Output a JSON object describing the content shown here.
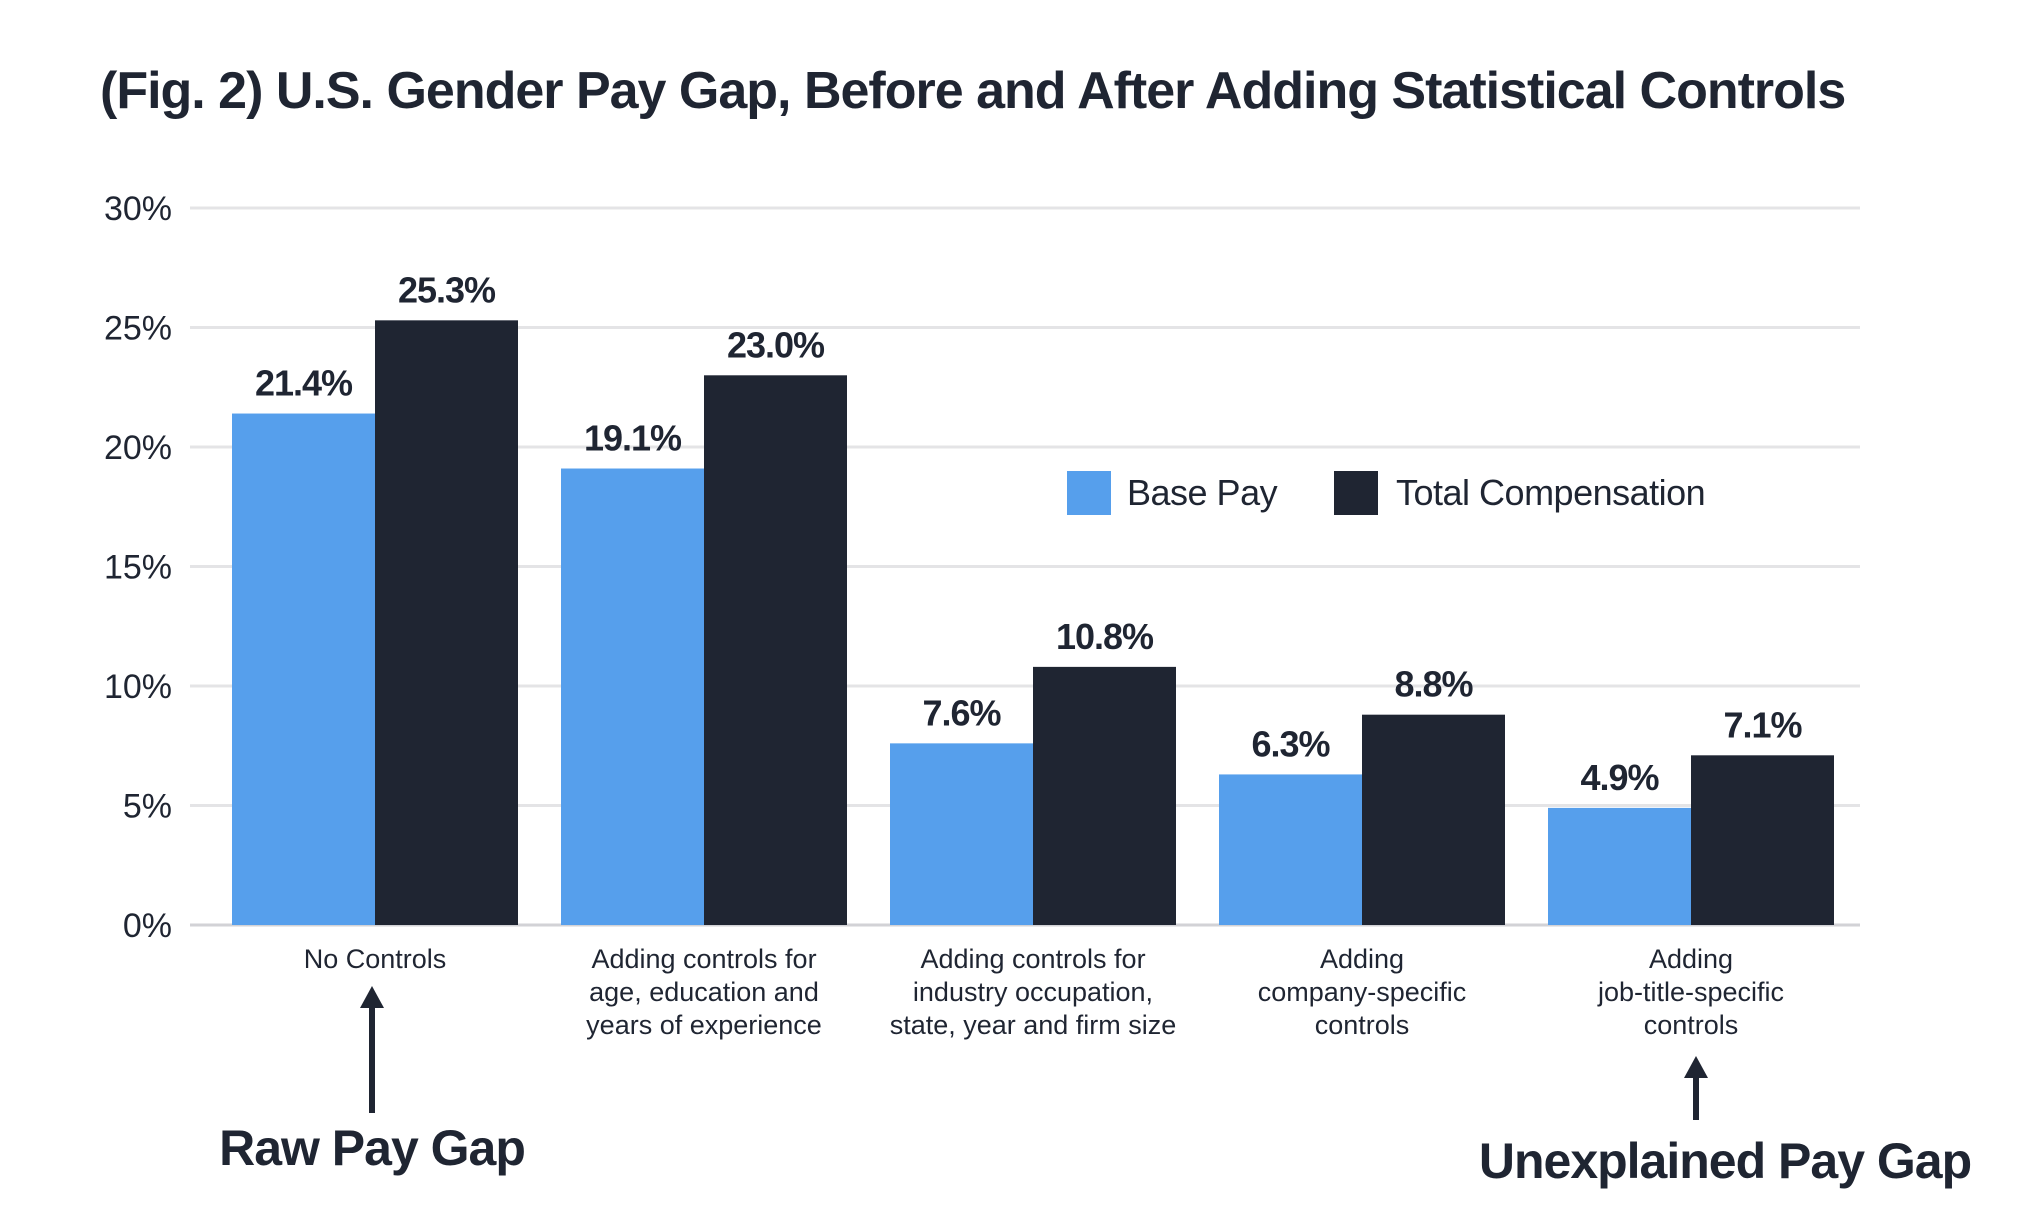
{
  "colors": {
    "base_pay": "#569fec",
    "total_comp": "#1f2532",
    "grid": "#e4e4e6",
    "text": "#1f2532"
  },
  "chart_data": {
    "type": "bar",
    "title": "(Fig. 2) U.S. Gender Pay Gap, Before and After Adding Statistical Controls",
    "xlabel": "",
    "ylabel": "",
    "ylim": [
      0,
      30
    ],
    "yticks": [
      "0%",
      "5%",
      "10%",
      "15%",
      "20%",
      "25%",
      "30%"
    ],
    "ytick_values": [
      0,
      5,
      10,
      15,
      20,
      25,
      30
    ],
    "grid": true,
    "legend_position": "upper-right",
    "categories": [
      [
        "No Controls"
      ],
      [
        "Adding controls for",
        "age, education and",
        "years of experience"
      ],
      [
        "Adding controls for",
        "industry occupation,",
        "state, year and firm size"
      ],
      [
        "Adding",
        "company-specific",
        "controls"
      ],
      [
        "Adding",
        "job-title-specific",
        "controls"
      ]
    ],
    "series": [
      {
        "name": "Base Pay",
        "values": [
          21.4,
          19.1,
          7.6,
          6.3,
          4.9
        ],
        "labels": [
          "21.4%",
          "19.1%",
          "7.6%",
          "6.3%",
          "4.9%"
        ]
      },
      {
        "name": "Total Compensation",
        "values": [
          25.3,
          23.0,
          10.8,
          8.8,
          7.1
        ],
        "labels": [
          "25.3%",
          "23.0%",
          "10.8%",
          "8.8%",
          "7.1%"
        ]
      }
    ],
    "annotations": [
      {
        "text": "Raw Pay Gap",
        "category_index": 0
      },
      {
        "text": "Unexplained Pay Gap",
        "category_index": 4
      }
    ]
  }
}
